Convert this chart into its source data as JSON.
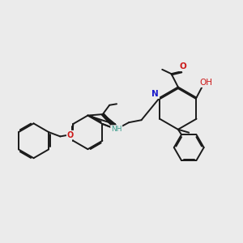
{
  "bg_color": "#ebebeb",
  "bond_color": "#1a1a1a",
  "n_color": "#1a1acc",
  "o_color": "#cc1a1a",
  "nh_color": "#3a9a8a",
  "lw": 1.4,
  "xlim": [
    0,
    10
  ],
  "ylim": [
    0,
    10
  ]
}
